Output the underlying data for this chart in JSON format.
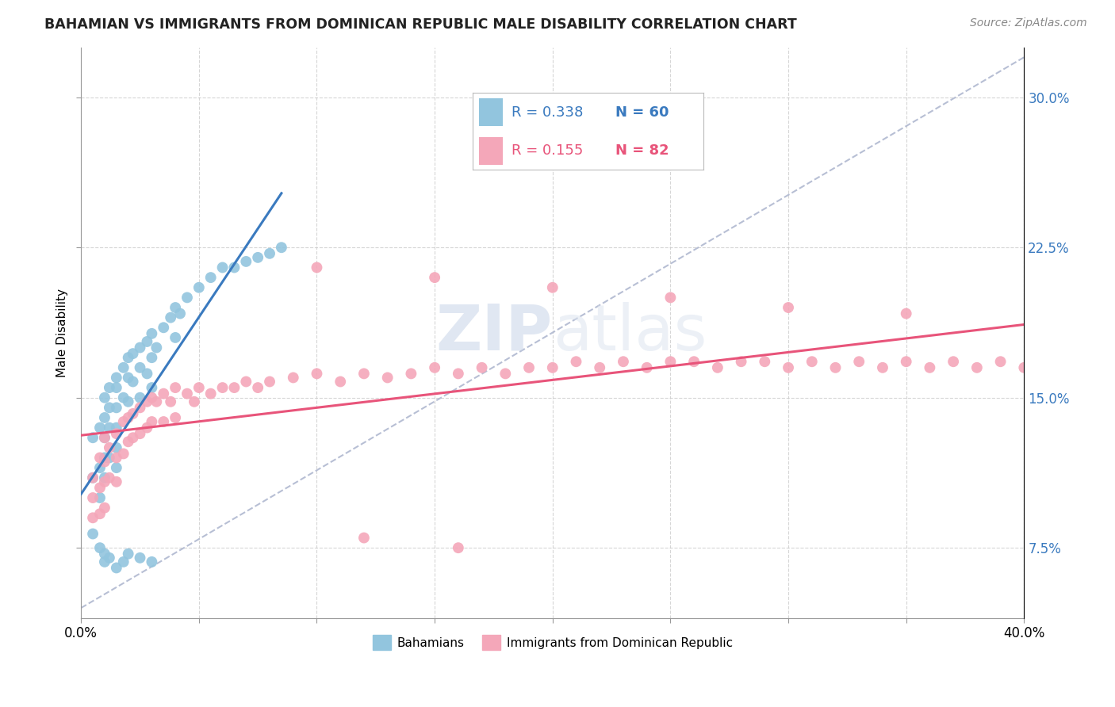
{
  "title": "BAHAMIAN VS IMMIGRANTS FROM DOMINICAN REPUBLIC MALE DISABILITY CORRELATION CHART",
  "source": "Source: ZipAtlas.com",
  "ylabel": "Male Disability",
  "yticks": [
    "7.5%",
    "15.0%",
    "22.5%",
    "30.0%"
  ],
  "ytick_vals": [
    0.075,
    0.15,
    0.225,
    0.3
  ],
  "xlim": [
    0.0,
    0.4
  ],
  "ylim": [
    0.04,
    0.325
  ],
  "blue_color": "#92c5de",
  "pink_color": "#f4a7b9",
  "blue_line_color": "#3a7abf",
  "pink_line_color": "#e8547a",
  "ref_line_color": "#b0b8d0",
  "watermark_color": "#ccd5e8",
  "background_color": "#ffffff",
  "grid_color": "#cccccc",
  "bahamian_x": [
    0.005,
    0.005,
    0.008,
    0.008,
    0.008,
    0.01,
    0.01,
    0.01,
    0.01,
    0.01,
    0.012,
    0.012,
    0.012,
    0.012,
    0.015,
    0.015,
    0.015,
    0.015,
    0.015,
    0.015,
    0.018,
    0.018,
    0.02,
    0.02,
    0.02,
    0.022,
    0.022,
    0.025,
    0.025,
    0.025,
    0.028,
    0.028,
    0.03,
    0.03,
    0.03,
    0.032,
    0.035,
    0.038,
    0.04,
    0.04,
    0.042,
    0.045,
    0.05,
    0.055,
    0.06,
    0.065,
    0.07,
    0.075,
    0.08,
    0.085,
    0.005,
    0.008,
    0.01,
    0.01,
    0.012,
    0.015,
    0.018,
    0.02,
    0.025,
    0.03
  ],
  "bahamian_y": [
    0.13,
    0.11,
    0.135,
    0.115,
    0.1,
    0.15,
    0.14,
    0.13,
    0.12,
    0.11,
    0.155,
    0.145,
    0.135,
    0.12,
    0.16,
    0.155,
    0.145,
    0.135,
    0.125,
    0.115,
    0.165,
    0.15,
    0.17,
    0.16,
    0.148,
    0.172,
    0.158,
    0.175,
    0.165,
    0.15,
    0.178,
    0.162,
    0.182,
    0.17,
    0.155,
    0.175,
    0.185,
    0.19,
    0.195,
    0.18,
    0.192,
    0.2,
    0.205,
    0.21,
    0.215,
    0.215,
    0.218,
    0.22,
    0.222,
    0.225,
    0.082,
    0.075,
    0.072,
    0.068,
    0.07,
    0.065,
    0.068,
    0.072,
    0.07,
    0.068
  ],
  "dominican_x": [
    0.005,
    0.005,
    0.005,
    0.008,
    0.008,
    0.008,
    0.01,
    0.01,
    0.01,
    0.01,
    0.012,
    0.012,
    0.015,
    0.015,
    0.015,
    0.018,
    0.018,
    0.02,
    0.02,
    0.022,
    0.022,
    0.025,
    0.025,
    0.028,
    0.028,
    0.03,
    0.03,
    0.032,
    0.035,
    0.035,
    0.038,
    0.04,
    0.04,
    0.045,
    0.048,
    0.05,
    0.055,
    0.06,
    0.065,
    0.07,
    0.075,
    0.08,
    0.09,
    0.1,
    0.11,
    0.12,
    0.13,
    0.14,
    0.15,
    0.16,
    0.17,
    0.18,
    0.19,
    0.2,
    0.21,
    0.22,
    0.23,
    0.24,
    0.25,
    0.26,
    0.27,
    0.28,
    0.29,
    0.3,
    0.31,
    0.32,
    0.33,
    0.34,
    0.35,
    0.36,
    0.37,
    0.38,
    0.39,
    0.4,
    0.1,
    0.15,
    0.2,
    0.25,
    0.3,
    0.35,
    0.12,
    0.16
  ],
  "dominican_y": [
    0.11,
    0.1,
    0.09,
    0.12,
    0.105,
    0.092,
    0.13,
    0.118,
    0.108,
    0.095,
    0.125,
    0.11,
    0.132,
    0.12,
    0.108,
    0.138,
    0.122,
    0.14,
    0.128,
    0.142,
    0.13,
    0.145,
    0.132,
    0.148,
    0.135,
    0.15,
    0.138,
    0.148,
    0.152,
    0.138,
    0.148,
    0.155,
    0.14,
    0.152,
    0.148,
    0.155,
    0.152,
    0.155,
    0.155,
    0.158,
    0.155,
    0.158,
    0.16,
    0.162,
    0.158,
    0.162,
    0.16,
    0.162,
    0.165,
    0.162,
    0.165,
    0.162,
    0.165,
    0.165,
    0.168,
    0.165,
    0.168,
    0.165,
    0.168,
    0.168,
    0.165,
    0.168,
    0.168,
    0.165,
    0.168,
    0.165,
    0.168,
    0.165,
    0.168,
    0.165,
    0.168,
    0.165,
    0.168,
    0.165,
    0.215,
    0.21,
    0.205,
    0.2,
    0.195,
    0.192,
    0.08,
    0.075
  ]
}
